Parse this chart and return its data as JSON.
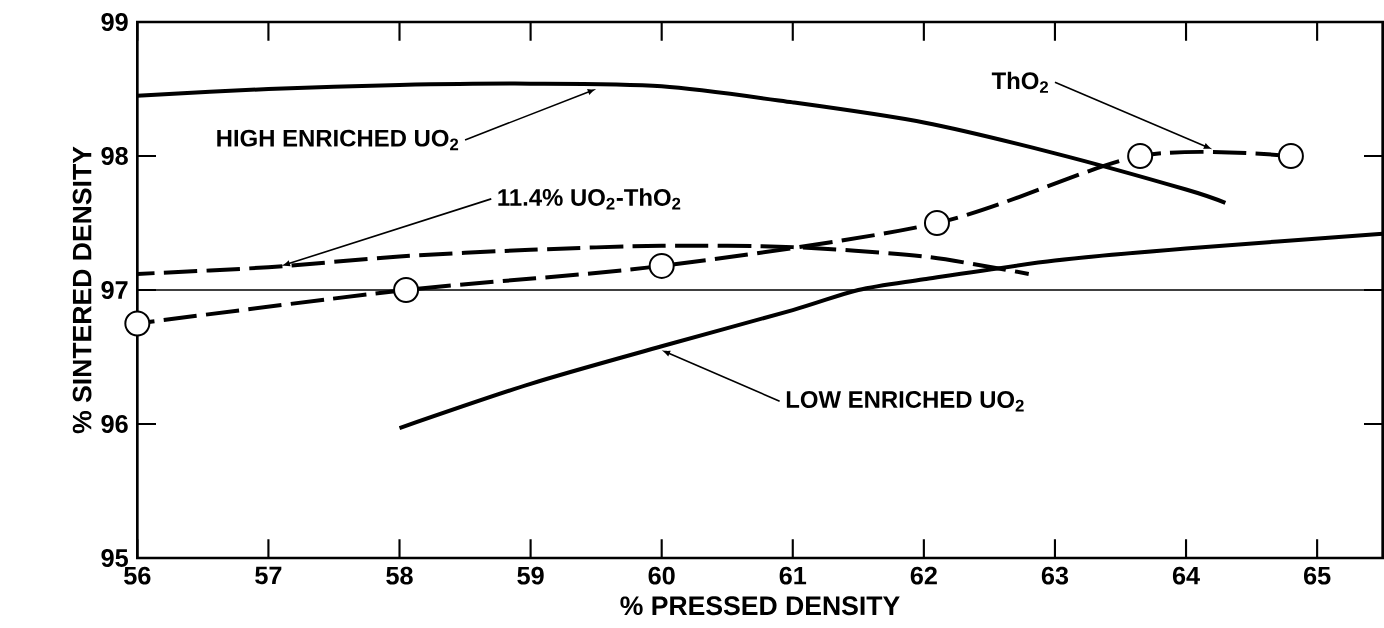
{
  "chart_data": {
    "type": "line",
    "xlabel": "% PRESSED DENSITY",
    "ylabel": "% SINTERED DENSITY",
    "xlim": [
      56,
      65.5
    ],
    "ylim": [
      95,
      99
    ],
    "xticks": [
      56,
      57,
      58,
      59,
      60,
      61,
      62,
      63,
      64,
      65
    ],
    "yticks": [
      95,
      96,
      97,
      98,
      99
    ],
    "grid": false,
    "series": [
      {
        "color": "#000000",
        "line_style": "solid",
        "marker": "none",
        "x": [
          56,
          57,
          58,
          59,
          60,
          61,
          62,
          63,
          64,
          64.3
        ],
        "values": [
          98.45,
          98.5,
          98.53,
          98.54,
          98.52,
          98.4,
          98.25,
          98.02,
          97.75,
          97.65
        ]
      },
      {
        "color": "#000000",
        "line_style": "solid",
        "marker": "none",
        "x": [
          58,
          59,
          60,
          61,
          61.5,
          62,
          63,
          64,
          65.5
        ],
        "values": [
          95.97,
          96.3,
          96.58,
          96.85,
          97.0,
          97.08,
          97.22,
          97.31,
          97.42
        ]
      },
      {
        "color": "#000000",
        "line_style": "dashed",
        "marker": "none",
        "x": [
          56,
          57,
          58,
          59,
          60,
          61,
          62,
          62.8
        ],
        "values": [
          97.12,
          97.17,
          97.25,
          97.3,
          97.33,
          97.32,
          97.25,
          97.12
        ]
      },
      {
        "color": "#000000",
        "line_style": "dashed",
        "marker": "circle",
        "x": [
          56,
          58.05,
          60,
          62.1,
          63.65,
          64.8
        ],
        "values": [
          96.75,
          97.0,
          97.18,
          97.5,
          98.0,
          98.0
        ]
      }
    ],
    "ref_lines": [
      {
        "axis": "y",
        "value": 97
      }
    ],
    "annotations": [
      {
        "text": "HIGH ENRICHED UO$_{2}$",
        "x": 59.5,
        "y": 98.5
      },
      {
        "text": "11.4% UO$_{2}$-ThO$_{2}$",
        "x": 57.1,
        "y": 97.18
      },
      {
        "text": "ThO$_{2}$",
        "x": 64.2,
        "y": 98.05
      },
      {
        "text": "LOW ENRICHED UO$_{2}$",
        "x": 60,
        "y": 96.55
      }
    ]
  }
}
